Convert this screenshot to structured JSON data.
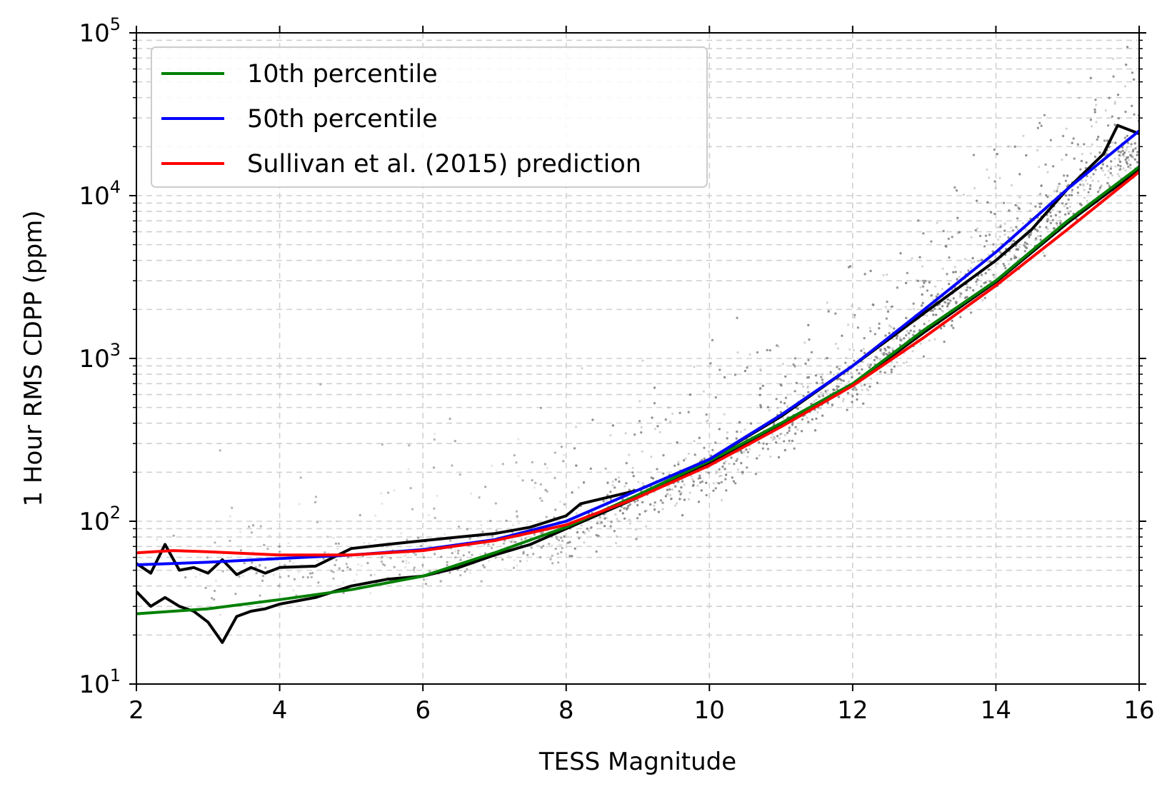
{
  "chart_data": {
    "type": "scatter",
    "xlabel": "TESS Magnitude",
    "ylabel": "1 Hour RMS CDPP (ppm)",
    "xlim": [
      2,
      16
    ],
    "ylim": [
      10,
      100000
    ],
    "yscale": "log",
    "grid": true,
    "legend_position": "top-left",
    "x_ticks": [
      "2",
      "4",
      "6",
      "8",
      "10",
      "12",
      "14",
      "16"
    ],
    "y_ticks": [
      {
        "base": "10",
        "exp": "1"
      },
      {
        "base": "10",
        "exp": "2"
      },
      {
        "base": "10",
        "exp": "3"
      },
      {
        "base": "10",
        "exp": "4"
      },
      {
        "base": "10",
        "exp": "5"
      }
    ],
    "series": [
      {
        "name": "10th percentile",
        "color": "#008000",
        "x": [
          2,
          3,
          4,
          5,
          6,
          7,
          8,
          9,
          10,
          11,
          12,
          13,
          14,
          15,
          16
        ],
        "y": [
          27,
          29,
          33,
          38,
          46,
          64,
          92,
          145,
          235,
          400,
          700,
          1500,
          3000,
          7000,
          15000
        ]
      },
      {
        "name": "50th percentile",
        "color": "#0000ff",
        "x": [
          2,
          3,
          4,
          5,
          6,
          7,
          8,
          9,
          10,
          11,
          12,
          13,
          14,
          15,
          16
        ],
        "y": [
          54,
          56,
          59,
          62,
          67,
          77,
          100,
          155,
          240,
          450,
          900,
          2000,
          4500,
          11000,
          25000
        ]
      },
      {
        "name": "Sullivan et al. (2015) prediction",
        "color": "#ff0000",
        "x": [
          2,
          2.5,
          3,
          4,
          5,
          6,
          7,
          8,
          9,
          10,
          11,
          12,
          13,
          14,
          15,
          16
        ],
        "y": [
          64,
          66,
          65,
          62,
          62,
          66,
          76,
          95,
          140,
          220,
          380,
          680,
          1350,
          2800,
          6200,
          14000
        ]
      },
      {
        "name": "",
        "color": "#000000",
        "x": [
          2,
          2.2,
          2.4,
          2.6,
          2.8,
          3,
          3.2,
          3.4,
          3.6,
          3.8,
          4,
          4.5,
          5,
          5.5,
          6,
          6.5,
          7,
          7.5,
          8,
          8.2,
          9,
          10,
          11,
          12,
          13,
          14,
          14.5,
          15,
          15.5,
          15.7,
          16
        ],
        "y": [
          55,
          48,
          72,
          50,
          52,
          48,
          58,
          47,
          52,
          48,
          52,
          53,
          68,
          72,
          76,
          80,
          84,
          92,
          108,
          128,
          155,
          240,
          440,
          900,
          1900,
          4000,
          6200,
          11000,
          18000,
          27000,
          24000
        ]
      },
      {
        "name": "",
        "color": "#000000",
        "x": [
          2,
          2.2,
          2.4,
          2.6,
          2.8,
          3,
          3.2,
          3.4,
          3.6,
          3.8,
          4,
          4.5,
          5,
          5.5,
          6,
          6.5,
          7,
          7.5,
          8,
          9,
          10,
          11,
          12,
          13,
          14,
          15,
          16
        ],
        "y": [
          37,
          30,
          34,
          30,
          28,
          24,
          18,
          26,
          28,
          29,
          31,
          34,
          40,
          44,
          46,
          52,
          62,
          72,
          90,
          140,
          225,
          390,
          690,
          1450,
          2950,
          6800,
          14500
        ]
      }
    ],
    "scatter_background": {
      "color": "#808080",
      "description_points": "dense grey cloud of stars following the percentile trend"
    }
  }
}
